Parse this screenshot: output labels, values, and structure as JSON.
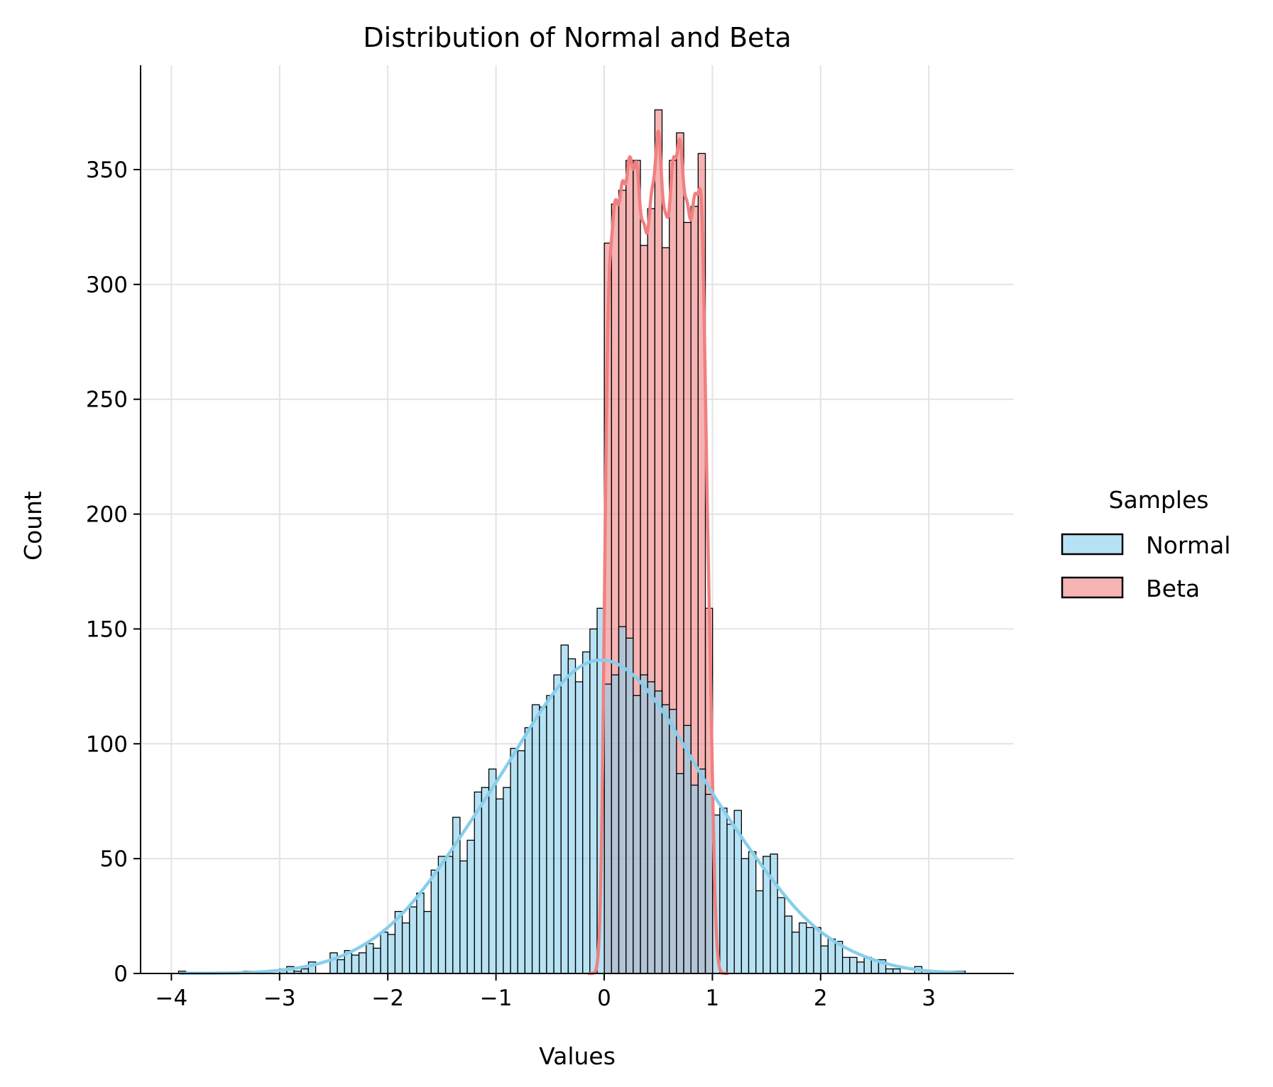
{
  "chart_data": {
    "type": "histogram",
    "title": "Distribution of Normal and Beta",
    "xlabel": "Values",
    "ylabel": "Count",
    "xlim": [
      -4.25,
      3.75
    ],
    "ylim": [
      0,
      395
    ],
    "grid": true,
    "x_ticks": [
      "−4",
      "−3",
      "−2",
      "−1",
      "0",
      "1",
      "2",
      "3"
    ],
    "x_tick_values": [
      -4,
      -3,
      -2,
      -1,
      0,
      1,
      2,
      3
    ],
    "y_ticks": [
      "0",
      "50",
      "100",
      "150",
      "200",
      "250",
      "300",
      "350"
    ],
    "y_tick_values": [
      0,
      50,
      100,
      150,
      200,
      250,
      300,
      350
    ],
    "bins": {
      "start": -3.934,
      "width": 0.0667
    },
    "legend": {
      "title": "Samples",
      "placement": "right-outside"
    },
    "series": [
      {
        "name": "Beta",
        "color": "#F08080",
        "first_bin": 59,
        "counts": [
          318,
          335,
          341,
          354,
          354,
          317,
          333,
          376,
          316,
          354,
          366,
          327,
          334,
          357,
          159
        ],
        "kde": true
      },
      {
        "name": "Normal",
        "color": "#87CEEB",
        "first_bin": 0,
        "counts": [
          1,
          0,
          0,
          0,
          0,
          0,
          0,
          0,
          0,
          1,
          0,
          0,
          0,
          0,
          2,
          3,
          1,
          2,
          5,
          0,
          0,
          9,
          6,
          10,
          8,
          9,
          13,
          11,
          18,
          17,
          27,
          22,
          29,
          35,
          27,
          45,
          51,
          51,
          68,
          49,
          58,
          79,
          81,
          89,
          76,
          81,
          98,
          97,
          107,
          117,
          116,
          121,
          130,
          143,
          137,
          127,
          140,
          150,
          159,
          126,
          130,
          151,
          146,
          121,
          130,
          127,
          123,
          117,
          115,
          87,
          108,
          82,
          89,
          78,
          69,
          72,
          65,
          71,
          50,
          53,
          36,
          51,
          52,
          33,
          25,
          18,
          22,
          20,
          20,
          12,
          15,
          14,
          7,
          7,
          5,
          7,
          6,
          6,
          2,
          2,
          0,
          0,
          3,
          0,
          0,
          0,
          0,
          1,
          1
        ],
        "kde": true
      }
    ]
  }
}
